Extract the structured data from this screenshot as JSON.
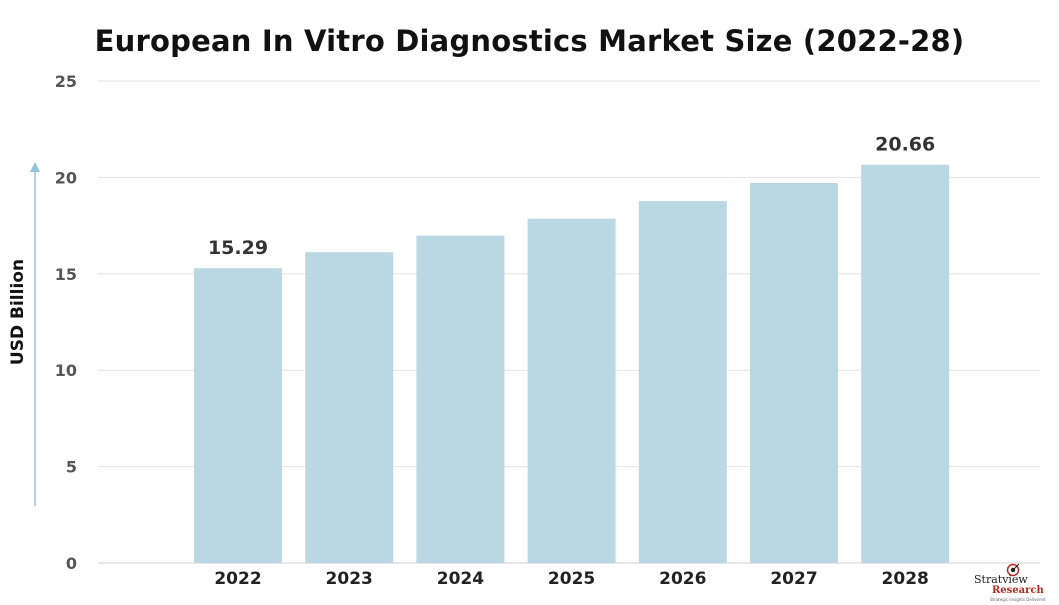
{
  "chart_data": {
    "type": "bar",
    "title": "European In Vitro Diagnostics Market Size (2022-28)",
    "xlabel": "",
    "ylabel": "USD Billion",
    "categories": [
      "2022",
      "2023",
      "2024",
      "2025",
      "2026",
      "2027",
      "2028"
    ],
    "values": [
      15.29,
      16.12,
      16.98,
      17.86,
      18.77,
      19.71,
      20.66
    ],
    "data_labels": {
      "2022": "15.29",
      "2028": "20.66"
    },
    "ylim": [
      0,
      25
    ],
    "yticks": [
      "0",
      "5",
      "10",
      "15",
      "20",
      "25"
    ],
    "grid": true,
    "bar_color": "#b9d8e4",
    "legend": "none"
  },
  "logo": {
    "name": "Stratview",
    "sub": "Research",
    "tagline": "Strategic Insights Delivered",
    "icon": "target-arrow-icon"
  }
}
